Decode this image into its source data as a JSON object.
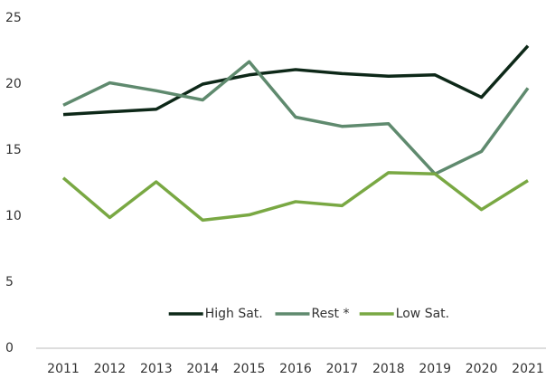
{
  "chart_data": {
    "type": "line",
    "categories": [
      "2011",
      "2012",
      "2013",
      "2014",
      "2015",
      "2016",
      "2017",
      "2018",
      "2019",
      "2020",
      "2021"
    ],
    "series": [
      {
        "name": "High Sat.",
        "color": "#0d2818",
        "values": [
          17.7,
          17.9,
          18.1,
          20.0,
          20.7,
          21.1,
          20.8,
          20.6,
          20.7,
          19.0,
          22.9
        ]
      },
      {
        "name": "Rest *",
        "color": "#5f8a6e",
        "values": [
          18.4,
          20.1,
          19.5,
          18.8,
          21.7,
          17.5,
          16.8,
          17.0,
          13.2,
          14.9,
          19.7
        ]
      },
      {
        "name": "Low Sat.",
        "color": "#79a843",
        "values": [
          12.9,
          9.9,
          12.6,
          9.7,
          10.1,
          11.1,
          10.8,
          13.3,
          13.2,
          10.5,
          12.7
        ]
      }
    ],
    "ylim": [
      0,
      25
    ],
    "yticks": [
      0,
      5,
      10,
      15,
      20,
      25
    ],
    "grid": false,
    "legend": "bottom"
  }
}
